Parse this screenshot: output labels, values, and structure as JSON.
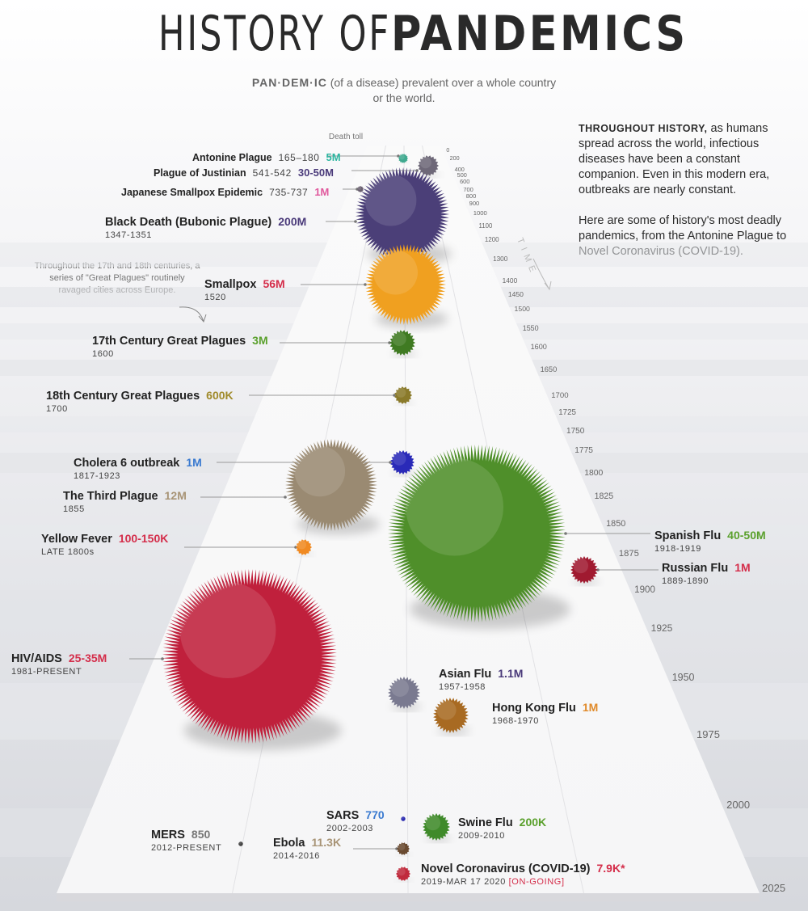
{
  "title": {
    "light": "HISTORY OF ",
    "bold": "PANDEMICS"
  },
  "definition": {
    "term": "PAN·DEM·IC",
    "text": " (of a disease) prevalent over a whole country or the world."
  },
  "intro": {
    "lead": "THROUGHOUT HISTORY,",
    "p1": " as humans spread across the world, infectious diseases have been a constant companion. Even in this modern era, outbreaks are nearly constant.",
    "p2": "Here are some of history's most deadly pandemics, from the Antonine Plague to Novel Coronavirus (COVID-19)."
  },
  "note": "Throughout the 17th and 18th centuries, a series of \"Great Plagues\" routinely ravaged cities across Europe.",
  "death_toll_label": "Death toll",
  "time_axis_label": "TIME",
  "chart_data": {
    "type": "scatter",
    "title": "HISTORY OF PANDEMICS",
    "xlabel": "",
    "ylabel": "TIME",
    "time_ticks": [
      0,
      200,
      400,
      500,
      600,
      700,
      800,
      900,
      1000,
      1100,
      1200,
      1300,
      1400,
      1450,
      1500,
      1550,
      1600,
      1650,
      1700,
      1725,
      1750,
      1775,
      1800,
      1825,
      1850,
      1875,
      1900,
      1925,
      1950,
      1975,
      2000,
      2025
    ],
    "pandemics": [
      {
        "id": "antonine",
        "name": "Antonine Plague",
        "years": "165–180",
        "toll": "5M",
        "color": "#2bb5a0"
      },
      {
        "id": "justinian",
        "name": "Plague of Justinian",
        "years": "541-542",
        "toll": "30-50M",
        "color": "#4a3a7a"
      },
      {
        "id": "japanese",
        "name": "Japanese Smallpox Epidemic",
        "years": "735-737",
        "toll": "1M",
        "color": "#e0589c"
      },
      {
        "id": "blackdeath",
        "name": "Black Death (Bubonic Plague)",
        "years": "1347-1351",
        "toll": "200M",
        "color": "#4a3a7a"
      },
      {
        "id": "smallpox",
        "name": "Smallpox",
        "years": "1520",
        "toll": "56M",
        "color": "#d42d4a"
      },
      {
        "id": "great17",
        "name": "17th Century Great Plagues",
        "years": "1600",
        "toll": "3M",
        "color": "#5aa02c"
      },
      {
        "id": "great18",
        "name": "18th Century Great Plagues",
        "years": "1700",
        "toll": "600K",
        "color": "#a08a2a"
      },
      {
        "id": "cholera",
        "name": "Cholera 6 outbreak",
        "years": "1817-1923",
        "toll": "1M",
        "color": "#3a7ad0"
      },
      {
        "id": "thirdplague",
        "name": "The Third Plague",
        "years": "1855",
        "toll": "12M",
        "color": "#a89476"
      },
      {
        "id": "yellowfever",
        "name": "Yellow Fever",
        "years": "LATE 1800s",
        "toll": "100-150K",
        "color": "#d42d4a"
      },
      {
        "id": "spanishflu",
        "name": "Spanish Flu",
        "years": "1918-1919",
        "toll": "40-50M",
        "color": "#5aa02c"
      },
      {
        "id": "russianflu",
        "name": "Russian Flu",
        "years": "1889-1890",
        "toll": "1M",
        "color": "#d42d4a"
      },
      {
        "id": "hiv",
        "name": "HIV/AIDS",
        "years": "1981-PRESENT",
        "toll": "25-35M",
        "color": "#d42d4a"
      },
      {
        "id": "asianflu",
        "name": "Asian Flu",
        "years": "1957-1958",
        "toll": "1.1M",
        "color": "#4a3a7a"
      },
      {
        "id": "hongkong",
        "name": "Hong Kong Flu",
        "years": "1968-1970",
        "toll": "1M",
        "color": "#e08a2a"
      },
      {
        "id": "sars",
        "name": "SARS",
        "years": "2002-2003",
        "toll": "770",
        "color": "#3a7ad0"
      },
      {
        "id": "swineflu",
        "name": "Swine Flu",
        "years": "2009-2010",
        "toll": "200K",
        "color": "#5aa02c"
      },
      {
        "id": "mers",
        "name": "MERS",
        "years": "2012-PRESENT",
        "toll": "850",
        "color": "#777777"
      },
      {
        "id": "ebola",
        "name": "Ebola",
        "years": "2014-2016",
        "toll": "11.3K",
        "color": "#a89476"
      },
      {
        "id": "covid",
        "name": "Novel Coronavirus (COVID-19)",
        "years": "2019-MAR 17 2020",
        "status": "[ON-GOING]",
        "toll": "7.9K*",
        "color": "#d42d4a"
      }
    ]
  }
}
